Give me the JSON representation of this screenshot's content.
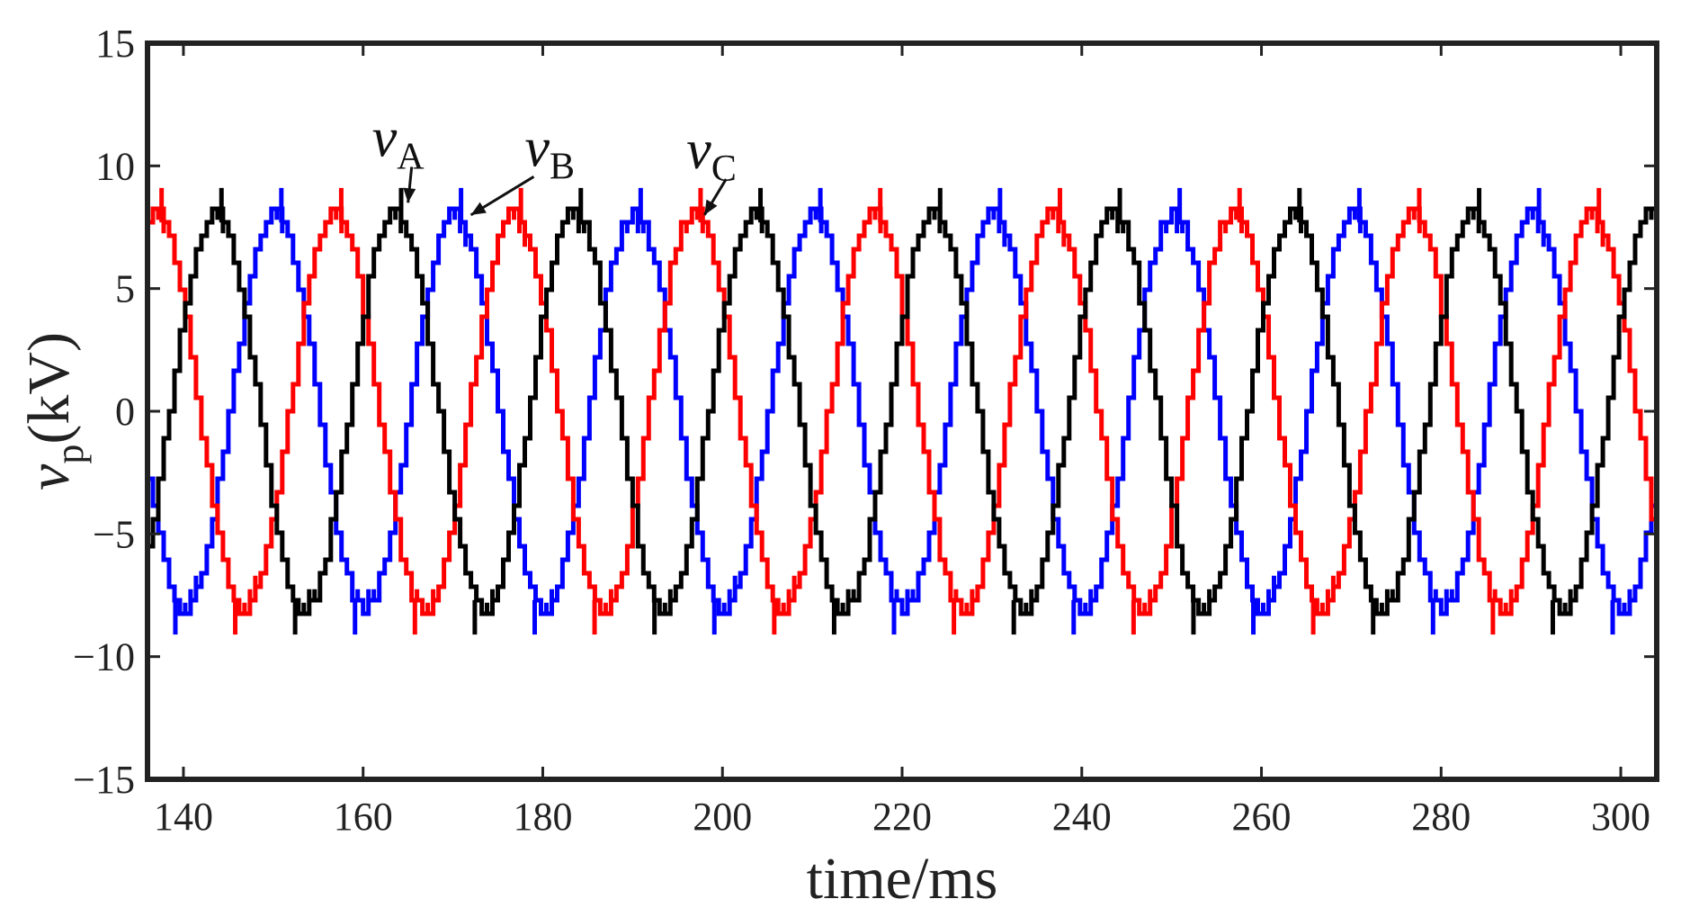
{
  "chart_data": {
    "type": "line",
    "title": "",
    "xlabel": "time/ms",
    "ylabel": {
      "symbol": "v",
      "subscript": "p",
      "unit": "(kV)"
    },
    "xlim": [
      136,
      304
    ],
    "ylim": [
      -15,
      15
    ],
    "xticks": [
      140,
      160,
      180,
      200,
      220,
      240,
      260,
      280,
      300
    ],
    "yticks": [
      -15,
      -10,
      -5,
      0,
      5,
      10,
      15
    ],
    "ytick_labels": [
      "−15",
      "−10",
      "−5",
      "0",
      "5",
      "10",
      "15"
    ],
    "grid": false,
    "legend": "none",
    "signal": {
      "frequency_hz": 50,
      "amplitude_kv": 8.1,
      "peak_spike_kv": 9.1,
      "staircase_step_ms": 0.6
    },
    "series": [
      {
        "name": "A",
        "color": "#0000ff",
        "phase_deg": -90
      },
      {
        "name": "B",
        "color": "#ff0000",
        "phase_deg": 150
      },
      {
        "name": "C",
        "color": "#000000",
        "phase_deg": 30
      }
    ],
    "annotations": [
      {
        "symbol": "v",
        "subscript": "A",
        "series": "A",
        "text_at": [
          161,
          10.4
        ],
        "arrow_to": [
          165,
          8.5
        ]
      },
      {
        "symbol": "v",
        "subscript": "B",
        "series": "B",
        "text_at": [
          178,
          10.0
        ],
        "arrow_to": [
          172,
          8.0
        ]
      },
      {
        "symbol": "v",
        "subscript": "C",
        "series": "C",
        "text_at": [
          196,
          9.9
        ],
        "arrow_to": [
          198,
          8.0
        ]
      }
    ]
  }
}
